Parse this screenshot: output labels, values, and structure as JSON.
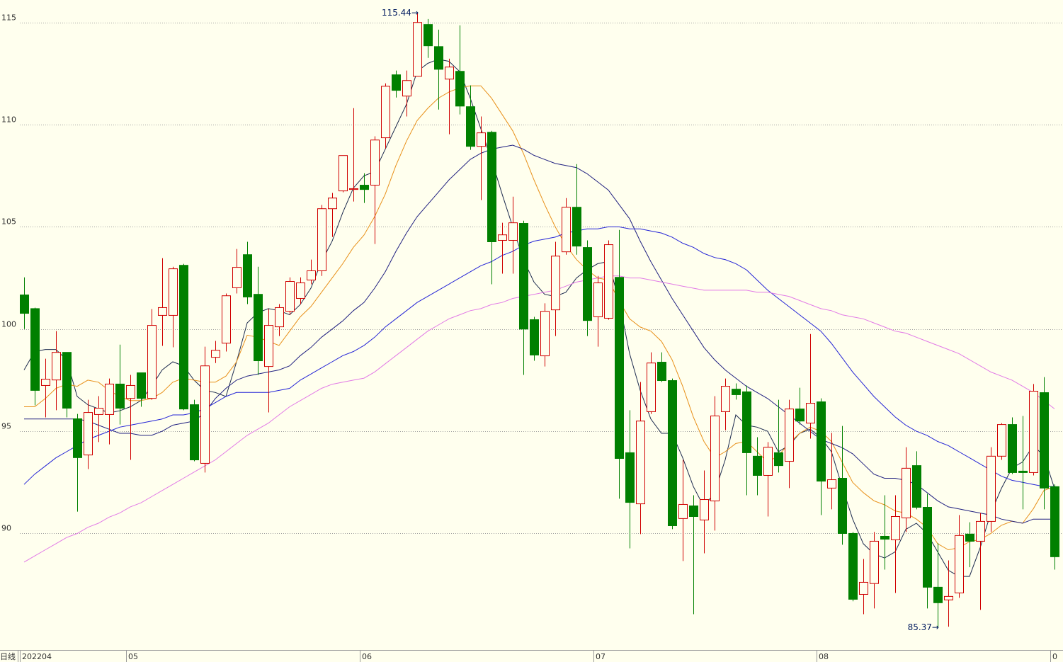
{
  "chart_data": {
    "type": "candlestick",
    "period_label": "日线",
    "up_color": "#d00000",
    "down_color": "#008000",
    "grid": true,
    "ylim": [
      84.3,
      116.1
    ],
    "yticks": [
      90,
      95,
      100,
      105,
      110,
      115
    ],
    "xticks": [
      {
        "value": 0,
        "label": "202204"
      },
      {
        "value": 10,
        "label": "05"
      },
      {
        "value": 32,
        "label": "06"
      },
      {
        "value": 54,
        "label": "07"
      },
      {
        "value": 75,
        "label": "08"
      },
      {
        "value": 97,
        "label": "0"
      }
    ],
    "open": [
      101.67,
      101.0,
      97.24,
      97.51,
      98.86,
      95.61,
      93.84,
      95.82,
      95.82,
      97.31,
      96.61,
      97.86,
      96.61,
      100.67,
      100.67,
      103.12,
      96.3,
      93.43,
      98.62,
      99.31,
      102.02,
      103.64,
      101.7,
      98.17,
      100.11,
      100.87,
      101.5,
      102.4,
      102.85,
      105.89,
      106.76,
      106.83,
      107.04,
      107.04,
      109.36,
      112.44,
      111.4,
      112.37,
      114.9,
      113.82,
      112.23,
      112.61,
      110.88,
      108.94,
      109.63,
      104.34,
      104.34,
      105.17,
      100.46,
      98.69,
      100.94,
      103.78,
      105.96,
      103.99,
      100.6,
      100.53,
      102.53,
      93.95,
      91.45,
      95.96,
      98.38,
      97.48,
      90.73,
      91.35,
      90.66,
      91.59,
      95.96,
      97.06,
      96.93,
      93.78,
      92.84,
      93.95,
      93.53,
      96.09,
      95.4,
      96.44,
      92.22,
      92.7,
      90.0,
      87.02,
      87.55,
      89.86,
      89.69,
      90.76,
      93.32,
      91.28,
      87.37,
      86.75,
      87.09,
      89.97,
      89.62,
      90.59,
      93.78,
      95.33,
      93.05,
      92.98,
      96.89,
      92.29
    ],
    "high": [
      102.53,
      101.05,
      98.55,
      99.9,
      98.86,
      95.85,
      96.54,
      96.72,
      97.58,
      99.24,
      97.76,
      97.86,
      100.98,
      103.47,
      103.05,
      103.19,
      96.54,
      99.14,
      99.42,
      101.74,
      103.92,
      104.27,
      103.05,
      100.98,
      101.22,
      102.53,
      102.53,
      103.4,
      106.07,
      106.66,
      108.49,
      110.81,
      107.62,
      109.43,
      112.02,
      112.65,
      112.65,
      115.44,
      115.17,
      114.65,
      113.23,
      114.86,
      111.92,
      110.4,
      109.7,
      105.2,
      106.48,
      105.3,
      100.6,
      101.26,
      104.27,
      106.41,
      108.07,
      104.34,
      102.6,
      104.34,
      104.85,
      96.03,
      97.41,
      98.86,
      98.86,
      97.58,
      93.6,
      91.87,
      93.08,
      96.72,
      97.58,
      97.34,
      97.24,
      94.71,
      94.47,
      96.54,
      96.54,
      97.13,
      99.76,
      96.61,
      94.92,
      95.26,
      90.07,
      88.75,
      90.07,
      91.87,
      91.87,
      94.22,
      94.02,
      91.94,
      89.52,
      88.68,
      90.9,
      90.55,
      91.0,
      94.22,
      95.4,
      95.68,
      95.75,
      97.31,
      97.65,
      92.4
    ],
    "low": [
      100.0,
      96.27,
      95.68,
      96.03,
      95.68,
      91.07,
      93.15,
      94.47,
      94.36,
      95.33,
      93.6,
      96.2,
      96.54,
      99.18,
      99.11,
      96.03,
      93.53,
      92.98,
      98.34,
      98.9,
      101.74,
      101.22,
      97.76,
      95.92,
      99.66,
      100.7,
      101.22,
      102.19,
      102.6,
      104.51,
      106.69,
      106.24,
      106.17,
      104.16,
      108.84,
      111.33,
      110.4,
      112.37,
      113.27,
      110.74,
      109.53,
      110.5,
      108.77,
      106.31,
      102.19,
      102.71,
      102.71,
      97.76,
      98.45,
      98.17,
      99.66,
      103.64,
      103.64,
      99.66,
      99.14,
      100.46,
      91.7,
      89.27,
      89.97,
      95.85,
      97.41,
      90.21,
      88.65,
      86.05,
      89.03,
      90.14,
      95.05,
      96.55,
      91.87,
      91.87,
      90.83,
      92.98,
      92.22,
      95.33,
      94.64,
      90.9,
      91.18,
      89.45,
      86.68,
      86.05,
      86.33,
      88.23,
      87.09,
      90.07,
      91.18,
      86.33,
      85.37,
      85.44,
      86.85,
      88.35,
      86.26,
      90.07,
      93.6,
      92.91,
      91.18,
      92.84,
      91.18,
      88.23
    ],
    "close": [
      100.77,
      97.0,
      97.55,
      98.86,
      96.13,
      93.71,
      95.92,
      96.13,
      97.31,
      96.13,
      97.24,
      96.61,
      100.18,
      101.05,
      102.95,
      96.09,
      93.6,
      98.2,
      98.96,
      101.63,
      103.02,
      101.57,
      98.45,
      100.18,
      101.05,
      102.33,
      102.26,
      102.85,
      105.89,
      106.41,
      108.49,
      106.87,
      106.83,
      109.25,
      111.88,
      111.68,
      112.16,
      115.0,
      113.86,
      112.71,
      112.82,
      110.91,
      108.94,
      109.6,
      104.27,
      104.61,
      105.2,
      100.0,
      98.73,
      100.87,
      103.57,
      105.96,
      104.06,
      100.42,
      102.26,
      104.13,
      93.67,
      91.52,
      95.5,
      98.34,
      97.48,
      90.38,
      91.42,
      90.83,
      91.66,
      95.75,
      97.2,
      96.79,
      93.95,
      92.84,
      94.22,
      93.32,
      96.09,
      95.5,
      96.37,
      92.56,
      92.63,
      90.0,
      86.78,
      87.61,
      89.62,
      89.72,
      90.83,
      93.19,
      91.28,
      87.37,
      86.61,
      86.92,
      89.9,
      89.62,
      90.59,
      93.78,
      95.33,
      92.98,
      92.98,
      96.96,
      92.22,
      88.86
    ],
    "moving_averages": [
      {
        "color": "#1c2a4e",
        "values": [
          98.0,
          98.9,
          99.0,
          99.0,
          98.5,
          96.7,
          96.3,
          96.1,
          95.9,
          96.0,
          96.2,
          96.5,
          97.2,
          98.0,
          98.4,
          98.2,
          97.5,
          97.0,
          96.9,
          96.7,
          98.4,
          100.3,
          100.8,
          101.0,
          100.9,
          100.7,
          101.2,
          102.0,
          103.3,
          104.3,
          105.7,
          106.9,
          107.5,
          107.7,
          108.8,
          109.9,
          111.0,
          112.6,
          113.0,
          113.2,
          113.1,
          112.6,
          111.3,
          109.8,
          108.3,
          106.6,
          105.0,
          103.4,
          102.3,
          101.7,
          101.6,
          101.8,
          102.5,
          102.9,
          103.2,
          103.3,
          101.4,
          98.8,
          97.0,
          95.6,
          94.9,
          94.9,
          93.7,
          92.3,
          91.3,
          92.0,
          93.6,
          95.8,
          95.3,
          95.2,
          95.0,
          94.0,
          94.3,
          94.9,
          95.1,
          94.7,
          94.0,
          92.3,
          90.7,
          89.5,
          89.0,
          88.8,
          89.1,
          90.2,
          90.5,
          90.0,
          89.1,
          88.2,
          87.9,
          87.9,
          89.3,
          91.0,
          92.2,
          93.2,
          93.5,
          94.3,
          93.8,
          92.2
        ]
      },
      {
        "color": "#e8901a",
        "values": [
          96.2,
          96.2,
          96.6,
          97.1,
          97.3,
          97.2,
          97.5,
          97.4,
          97.0,
          96.7,
          96.5,
          96.5,
          96.6,
          96.9,
          97.4,
          97.6,
          97.5,
          97.4,
          97.4,
          97.7,
          98.4,
          99.7,
          99.6,
          99.4,
          99.2,
          99.9,
          100.6,
          101.1,
          101.8,
          102.5,
          103.2,
          104.0,
          104.6,
          105.5,
          106.6,
          108.0,
          109.2,
          110.2,
          110.8,
          111.3,
          111.6,
          111.8,
          111.9,
          111.9,
          111.3,
          110.5,
          109.7,
          108.6,
          107.3,
          106.1,
          105.0,
          104.1,
          103.4,
          102.9,
          102.5,
          102.4,
          101.4,
          100.5,
          100.1,
          99.9,
          99.4,
          98.5,
          97.2,
          95.7,
          94.5,
          93.7,
          94.0,
          94.4,
          94.5,
          94.0,
          93.5,
          93.8,
          94.4,
          94.9,
          95.2,
          95.0,
          94.5,
          93.5,
          92.5,
          92.0,
          91.6,
          91.4,
          91.1,
          91.0,
          90.7,
          90.3,
          89.5,
          89.2,
          89.3,
          89.6,
          89.7,
          90.0,
          90.4,
          90.6,
          90.5,
          91.2,
          92.1,
          92.3
        ]
      },
      {
        "color": "#202080",
        "values": [
          95.6,
          95.6,
          95.6,
          95.6,
          95.6,
          95.6,
          95.5,
          95.3,
          95.1,
          94.9,
          94.9,
          94.8,
          94.8,
          95.0,
          95.3,
          95.4,
          95.5,
          95.9,
          96.6,
          97.1,
          97.5,
          97.7,
          97.8,
          97.9,
          98.0,
          98.2,
          98.7,
          99.1,
          99.6,
          100.0,
          100.4,
          100.9,
          101.3,
          102.0,
          102.8,
          103.8,
          104.7,
          105.5,
          106.1,
          106.7,
          107.3,
          107.8,
          108.3,
          108.6,
          108.8,
          108.9,
          109.0,
          108.8,
          108.5,
          108.3,
          108.1,
          108.0,
          107.9,
          107.6,
          107.2,
          106.8,
          106.1,
          105.4,
          104.3,
          103.3,
          102.4,
          101.5,
          100.7,
          99.9,
          99.1,
          98.5,
          98.0,
          97.6,
          97.2,
          96.9,
          96.6,
          96.2,
          95.8,
          95.4,
          95.0,
          94.6,
          94.4,
          94.2,
          93.9,
          93.4,
          92.9,
          92.7,
          92.7,
          92.6,
          92.4,
          92.0,
          91.6,
          91.3,
          91.2,
          91.1,
          91.0,
          90.9,
          90.7,
          90.6,
          90.5,
          90.7,
          90.7,
          90.7
        ]
      },
      {
        "color": "#2424d6",
        "values": [
          92.4,
          92.9,
          93.3,
          93.7,
          94.0,
          94.3,
          94.6,
          94.8,
          95.0,
          95.2,
          95.3,
          95.4,
          95.5,
          95.6,
          95.8,
          95.8,
          95.9,
          96.1,
          96.4,
          96.7,
          96.9,
          96.9,
          96.9,
          96.9,
          97.0,
          97.1,
          97.5,
          97.8,
          98.1,
          98.4,
          98.7,
          98.9,
          99.2,
          99.6,
          100.1,
          100.5,
          100.9,
          101.3,
          101.6,
          101.9,
          102.2,
          102.5,
          102.8,
          103.1,
          103.3,
          103.6,
          103.8,
          104.1,
          104.3,
          104.4,
          104.5,
          104.7,
          104.8,
          104.9,
          104.9,
          105.0,
          105.0,
          104.9,
          104.9,
          104.8,
          104.7,
          104.5,
          104.2,
          104.0,
          103.7,
          103.5,
          103.4,
          103.2,
          102.9,
          102.4,
          101.9,
          101.5,
          101.1,
          100.7,
          100.3,
          99.9,
          99.3,
          98.6,
          97.9,
          97.3,
          96.7,
          96.2,
          95.7,
          95.3,
          95.0,
          94.8,
          94.5,
          94.3,
          94.0,
          93.7,
          93.4,
          93.1,
          92.8,
          92.6,
          92.5,
          92.4,
          92.3,
          92.3
        ]
      },
      {
        "color": "#e27ae6",
        "values": [
          88.6,
          88.9,
          89.2,
          89.5,
          89.8,
          90.0,
          90.3,
          90.5,
          90.8,
          91.0,
          91.3,
          91.5,
          91.8,
          92.1,
          92.4,
          92.7,
          93.0,
          93.3,
          93.6,
          94.0,
          94.4,
          94.8,
          95.1,
          95.4,
          95.8,
          96.2,
          96.5,
          96.8,
          97.1,
          97.3,
          97.4,
          97.5,
          97.6,
          97.9,
          98.3,
          98.7,
          99.1,
          99.5,
          99.9,
          100.2,
          100.5,
          100.7,
          100.9,
          101.0,
          101.2,
          101.3,
          101.5,
          101.6,
          101.7,
          101.8,
          101.9,
          102.1,
          102.3,
          102.4,
          102.5,
          102.6,
          102.6,
          102.5,
          102.5,
          102.4,
          102.3,
          102.2,
          102.1,
          102.0,
          101.9,
          101.9,
          101.9,
          101.9,
          101.9,
          101.8,
          101.8,
          101.7,
          101.6,
          101.4,
          101.2,
          101.0,
          100.9,
          100.7,
          100.6,
          100.5,
          100.3,
          100.1,
          99.9,
          99.8,
          99.6,
          99.4,
          99.2,
          99.0,
          98.8,
          98.5,
          98.2,
          97.9,
          97.7,
          97.5,
          97.2,
          96.9,
          96.5,
          96.1
        ]
      }
    ],
    "annotations": [
      {
        "candle": 37,
        "value": 115.44,
        "label": "115.44→"
      },
      {
        "candle": 86,
        "value": 85.37,
        "label": "85.37→"
      }
    ]
  }
}
